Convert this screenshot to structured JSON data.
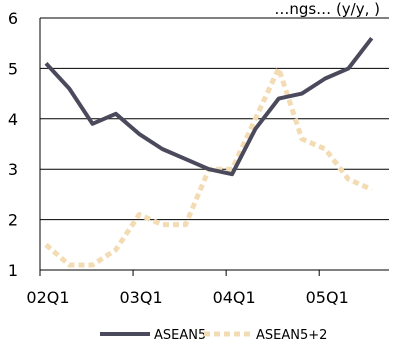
{
  "chart_data": {
    "type": "line",
    "title": "…ngs… (y/y, )",
    "xlabel": "",
    "ylabel": "",
    "ylim": [
      1,
      6
    ],
    "y_ticks": [
      "1",
      "2",
      "3",
      "4",
      "5",
      "6"
    ],
    "x_ticks": [
      "02Q1",
      "03Q1",
      "04Q1",
      "05Q1"
    ],
    "grid": "horizontal",
    "legend_position": "bottom",
    "x": [
      "02Q1",
      "02Q2",
      "02Q3",
      "02Q4",
      "03Q1",
      "03Q2",
      "03Q3",
      "03Q4",
      "04Q1",
      "04Q2",
      "04Q3",
      "04Q4",
      "05Q1",
      "05Q2",
      "05Q3"
    ],
    "series": [
      {
        "name": "ASEAN5",
        "color": "#4a4a5c",
        "style": "solid",
        "values": [
          5.1,
          4.6,
          3.9,
          4.1,
          3.7,
          3.4,
          3.2,
          3.0,
          2.9,
          3.8,
          4.4,
          4.5,
          4.8,
          5.0,
          5.6
        ]
      },
      {
        "name": "ASEAN5+2",
        "color": "#f3dcb4",
        "style": "dashed",
        "values": [
          1.5,
          1.1,
          1.1,
          1.4,
          2.1,
          1.9,
          1.9,
          3.0,
          3.0,
          4.0,
          5.0,
          3.6,
          3.4,
          2.8,
          2.6
        ]
      }
    ]
  }
}
